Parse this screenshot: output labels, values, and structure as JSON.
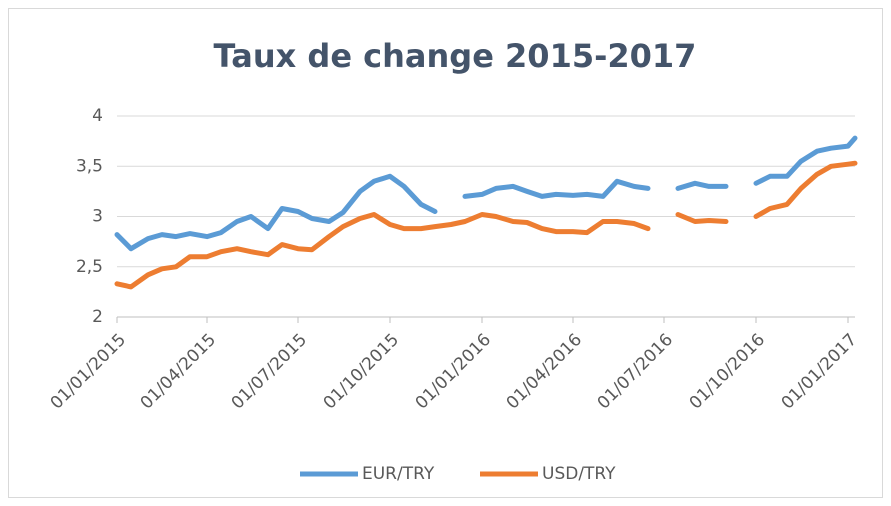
{
  "chart_data": {
    "type": "line",
    "title": "Taux de change 2015-2017",
    "x": [
      "01/01/2015",
      "15/01/2015",
      "01/02/2015",
      "15/02/2015",
      "01/03/2015",
      "15/03/2015",
      "01/04/2015",
      "15/04/2015",
      "01/05/2015",
      "15/05/2015",
      "01/06/2015",
      "15/06/2015",
      "01/07/2015",
      "15/07/2015",
      "01/08/2015",
      "15/08/2015",
      "01/09/2015",
      "15/09/2015",
      "01/10/2015",
      "15/10/2015",
      "01/11/2015",
      "15/11/2015",
      "01/12/2015",
      "15/12/2015",
      "01/01/2016",
      "15/01/2016",
      "01/02/2016",
      "15/02/2016",
      "01/03/2016",
      "15/03/2016",
      "01/04/2016",
      "15/04/2016",
      "01/05/2016",
      "15/05/2016",
      "01/06/2016",
      "15/06/2016",
      "01/07/2016",
      "15/07/2016",
      "01/08/2016",
      "15/08/2016",
      "01/09/2016",
      "15/09/2016",
      "01/10/2016",
      "15/10/2016",
      "01/11/2016",
      "15/11/2016",
      "01/12/2016",
      "15/12/2016",
      "01/01/2017",
      "08/01/2017"
    ],
    "series": [
      {
        "name": "EUR/TRY",
        "color": "#5b9bd5",
        "values": [
          2.82,
          2.68,
          2.78,
          2.82,
          2.8,
          2.83,
          2.8,
          2.84,
          2.95,
          3.0,
          2.88,
          3.08,
          3.05,
          2.98,
          2.95,
          3.04,
          3.25,
          3.35,
          3.4,
          3.3,
          3.12,
          3.05,
          null,
          3.2,
          3.22,
          3.28,
          3.3,
          3.25,
          3.2,
          3.22,
          3.21,
          3.22,
          3.2,
          3.35,
          3.3,
          3.28,
          null,
          3.28,
          3.33,
          3.3,
          3.3,
          null,
          3.33,
          3.4,
          3.4,
          3.55,
          3.65,
          3.68,
          3.7,
          3.78
        ]
      },
      {
        "name": "USD/TRY",
        "color": "#ed7d31",
        "values": [
          2.33,
          2.3,
          2.42,
          2.48,
          2.5,
          2.6,
          2.6,
          2.65,
          2.68,
          2.65,
          2.62,
          2.72,
          2.68,
          2.67,
          2.8,
          2.9,
          2.98,
          3.02,
          2.92,
          2.88,
          2.88,
          2.9,
          2.92,
          2.95,
          3.02,
          3.0,
          2.95,
          2.94,
          2.88,
          2.85,
          2.85,
          2.84,
          2.95,
          2.95,
          2.93,
          2.88,
          null,
          3.02,
          2.95,
          2.96,
          2.95,
          null,
          3.0,
          3.08,
          3.12,
          3.28,
          3.42,
          3.5,
          3.52,
          3.53
        ]
      }
    ],
    "xlim": [
      "01/01/2015",
      "08/01/2017"
    ],
    "xticks": [
      "01/01/2015",
      "01/04/2015",
      "01/07/2015",
      "01/10/2015",
      "01/01/2016",
      "01/04/2016",
      "01/07/2016",
      "01/10/2016",
      "01/01/2017"
    ],
    "ylim": [
      2,
      4
    ],
    "yticks": [
      2,
      {
        "value": 2.5,
        "label": "2,5"
      },
      3,
      {
        "value": 3.5,
        "label": "3,5"
      },
      4
    ],
    "grid": true,
    "legend": "bottom"
  }
}
